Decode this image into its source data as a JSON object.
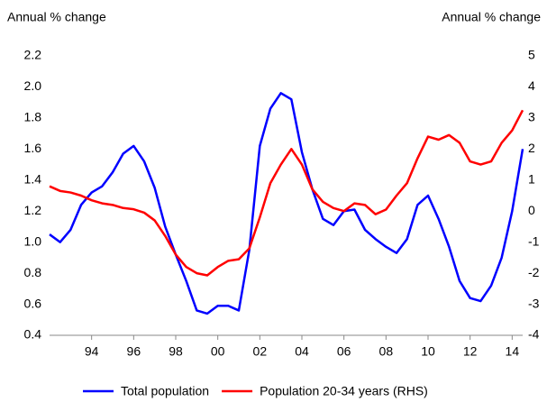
{
  "chart_data": {
    "type": "line",
    "y_label": "Annual % change",
    "y2_label": "Annual % change",
    "x": [
      1992.0,
      1992.5,
      1993.0,
      1993.5,
      1994.0,
      1994.5,
      1995.0,
      1995.5,
      1996.0,
      1996.5,
      1997.0,
      1997.5,
      1998.0,
      1998.5,
      1999.0,
      1999.5,
      2000.0,
      2000.5,
      2001.0,
      2001.5,
      2002.0,
      2002.5,
      2003.0,
      2003.5,
      2004.0,
      2004.5,
      2005.0,
      2005.5,
      2006.0,
      2006.5,
      2007.0,
      2007.5,
      2008.0,
      2008.5,
      2009.0,
      2009.5,
      2010.0,
      2010.5,
      2011.0,
      2011.5,
      2012.0,
      2012.5,
      2013.0,
      2013.5,
      2014.0,
      2014.5
    ],
    "xlim": [
      1992,
      2014.5
    ],
    "xticks": [
      {
        "value": 1994,
        "label": "94"
      },
      {
        "value": 1996,
        "label": "96"
      },
      {
        "value": 1998,
        "label": "98"
      },
      {
        "value": 2000,
        "label": "00"
      },
      {
        "value": 2002,
        "label": "02"
      },
      {
        "value": 2004,
        "label": "04"
      },
      {
        "value": 2006,
        "label": "06"
      },
      {
        "value": 2008,
        "label": "08"
      },
      {
        "value": 2010,
        "label": "10"
      },
      {
        "value": 2012,
        "label": "12"
      },
      {
        "value": 2014,
        "label": "14"
      }
    ],
    "ylim": [
      0.4,
      2.2
    ],
    "yticks": [
      {
        "value": 0.4,
        "label": "0.4"
      },
      {
        "value": 0.6,
        "label": "0.6"
      },
      {
        "value": 0.8,
        "label": "0.8"
      },
      {
        "value": 1.0,
        "label": "1.0"
      },
      {
        "value": 1.2,
        "label": "1.2"
      },
      {
        "value": 1.4,
        "label": "1.4"
      },
      {
        "value": 1.6,
        "label": "1.6"
      },
      {
        "value": 1.8,
        "label": "1.8"
      },
      {
        "value": 2.0,
        "label": "2.0"
      },
      {
        "value": 2.2,
        "label": "2.2"
      }
    ],
    "y2lim": [
      -4,
      5
    ],
    "y2ticks": [
      -4,
      -3,
      -2,
      -1,
      0,
      1,
      2,
      3,
      4,
      5
    ],
    "series": [
      {
        "name": "Total population",
        "color": "#0000ff",
        "axis": "y",
        "values": [
          1.05,
          1.0,
          1.08,
          1.24,
          1.32,
          1.36,
          1.45,
          1.57,
          1.62,
          1.52,
          1.35,
          1.1,
          0.92,
          0.75,
          0.56,
          0.54,
          0.59,
          0.59,
          0.56,
          0.95,
          1.62,
          1.86,
          1.96,
          1.92,
          1.58,
          1.34,
          1.15,
          1.11,
          1.2,
          1.21,
          1.08,
          1.02,
          0.97,
          0.93,
          1.02,
          1.24,
          1.3,
          1.15,
          0.97,
          0.75,
          0.64,
          0.62,
          0.72,
          0.9,
          1.2,
          1.6
        ]
      },
      {
        "name": "Population 20-34 years (RHS)",
        "color": "#ff0000",
        "axis": "y2",
        "values": [
          0.8,
          0.65,
          0.6,
          0.5,
          0.35,
          0.25,
          0.2,
          0.1,
          0.06,
          -0.05,
          -0.3,
          -0.8,
          -1.4,
          -1.8,
          -2.0,
          -2.07,
          -1.8,
          -1.6,
          -1.55,
          -1.2,
          -0.2,
          0.9,
          1.5,
          2.0,
          1.5,
          0.7,
          0.3,
          0.1,
          0.0,
          0.25,
          0.2,
          -0.1,
          0.05,
          0.5,
          0.9,
          1.7,
          2.4,
          2.3,
          2.45,
          2.2,
          1.6,
          1.5,
          1.6,
          2.2,
          2.6,
          3.25
        ]
      }
    ]
  }
}
